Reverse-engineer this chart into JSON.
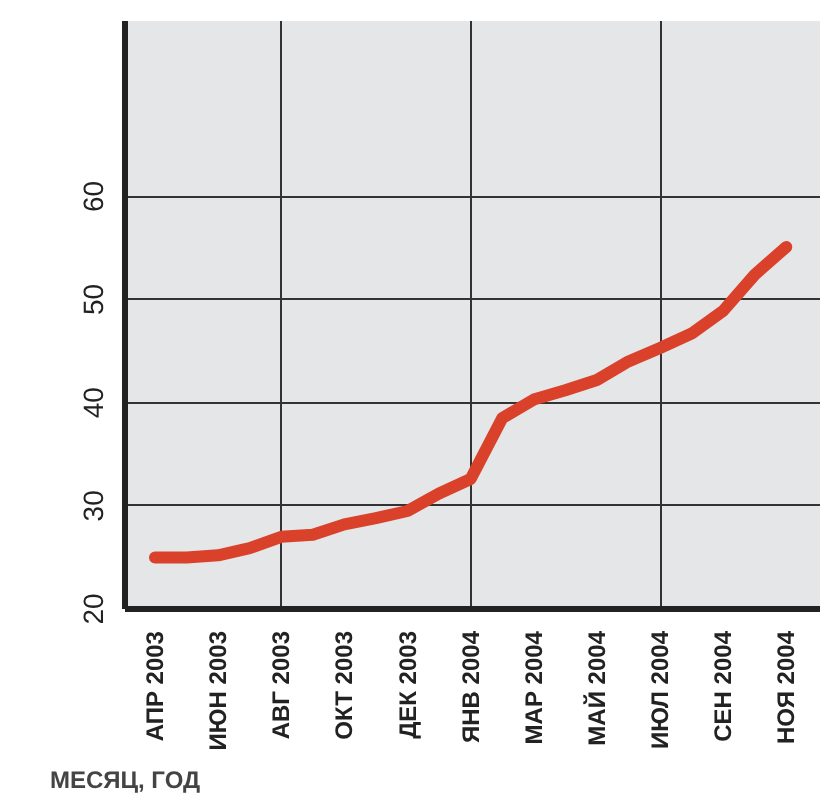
{
  "chart_data": {
    "type": "line",
    "xlabel": "МЕСЯЦ, ГОД",
    "categories": [
      "АПР 2003",
      null,
      "ИЮН 2003",
      null,
      "АВГ 2003",
      null,
      "ОКТ 2003",
      null,
      "ДЕК 2003",
      null,
      "ЯНВ 2004",
      null,
      "МАР 2004",
      null,
      "МАЙ 2004",
      null,
      "ИЮЛ 2004",
      null,
      "СЕН 2004",
      null,
      "НОЯ 2004"
    ],
    "series": [
      {
        "color": "#d9412b",
        "values": [
          25.0,
          25.0,
          25.2,
          25.9,
          27.0,
          27.2,
          28.2,
          28.8,
          29.5,
          31.2,
          32.6,
          38.5,
          40.3,
          41.2,
          42.2,
          44.0,
          45.3,
          46.7,
          48.9,
          52.4,
          55.1
        ]
      }
    ],
    "ylim": [
      20,
      77
    ],
    "yticks": [
      20,
      30,
      40,
      50,
      60
    ],
    "grid": true,
    "marker": "none",
    "line_style": "solid"
  }
}
